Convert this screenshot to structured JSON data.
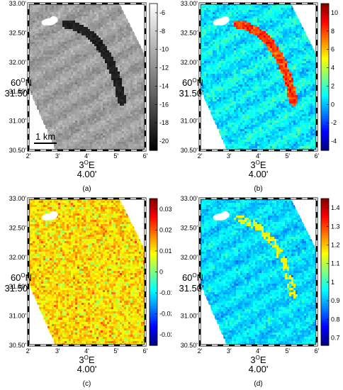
{
  "figure": {
    "coordinate_labels": {
      "lat_deg": "60",
      "lat_sup": "O",
      "lat_hemi": "N",
      "lat_min": "31.50'",
      "lon_deg": "3",
      "lon_sup": "O",
      "lon_hemi": "E",
      "lon_min": "4.00'"
    },
    "scale_bar_label": "1 km",
    "panels": [
      {
        "id": "a",
        "caption": "(a)",
        "yticks": [
          "33.00'",
          "32.50'",
          "32.00'",
          "31.50'",
          "31.00'",
          "30.50'"
        ],
        "xticks": [
          "2'",
          "3'",
          "4'",
          "5'",
          "6'"
        ],
        "colormap": "gray",
        "cb_ticks": [
          "-6",
          "-8",
          "-10",
          "-12",
          "-14",
          "-16",
          "-18",
          "-20"
        ],
        "cb_range": [
          -21,
          -5
        ],
        "has_scale_bar": true,
        "slick_value": -19
      },
      {
        "id": "b",
        "caption": "(b)",
        "yticks": [
          "33.00'",
          "32.50'",
          "32.00'",
          "",
          "31.00'",
          "30.50'"
        ],
        "xticks": [
          "2'",
          "3'",
          "4'",
          "5'",
          "6'"
        ],
        "colormap": "jet",
        "cb_ticks": [
          "10",
          "8",
          "6",
          "4",
          "2",
          "0",
          "-2",
          "-4"
        ],
        "cb_range": [
          -5,
          11
        ],
        "has_scale_bar": false,
        "slick_value": 8
      },
      {
        "id": "c",
        "caption": "(c)",
        "yticks": [
          "33.00'",
          "32.50'",
          "32.00'",
          "31.50'",
          "31.00'",
          "30.50'"
        ],
        "xticks": [
          "2'",
          "3'",
          "4'",
          "5'",
          "6'"
        ],
        "colormap": "jet",
        "cb_ticks": [
          "0.03",
          "0.02",
          "0.01",
          "0",
          "-0.01",
          "-0.02",
          "-0.03"
        ],
        "cb_range": [
          -0.035,
          0.035
        ],
        "has_scale_bar": false,
        "slick_value": null
      },
      {
        "id": "d",
        "caption": "(d)",
        "yticks": [
          "33.00'",
          "32.50'",
          "32.00'",
          "",
          "31.00'",
          "30.50'"
        ],
        "xticks": [
          "2'",
          "3'",
          "4'",
          "5'",
          "6'"
        ],
        "colormap": "jet",
        "cb_ticks": [
          "1.4",
          "1.3",
          "1.2",
          "1.1",
          "1",
          "0.9",
          "0.8",
          "0.7"
        ],
        "cb_range": [
          0.66,
          1.45
        ],
        "has_scale_bar": false,
        "slick_value": 1.15
      }
    ]
  },
  "chart_data": [
    {
      "type": "heatmap",
      "panel": "a",
      "title": "",
      "xlabel": "3°E 4.00'",
      "ylabel": "60°N 31.50'",
      "colorbar_ticks": [
        -6,
        -8,
        -10,
        -12,
        -14,
        -16,
        -18,
        -20
      ],
      "colorbar_range": [
        -21,
        -5
      ],
      "features": [
        "oil slick curving from 32.50' to 31.00'",
        "platform at 32.50'",
        "scale bar 1 km"
      ]
    },
    {
      "type": "heatmap",
      "panel": "b",
      "title": "",
      "xlabel": "3°E 4.00'",
      "ylabel": "60°N 31.50'",
      "colorbar_ticks": [
        10,
        8,
        6,
        4,
        2,
        0,
        -2,
        -4
      ],
      "colorbar_range": [
        -5,
        11
      ]
    },
    {
      "type": "heatmap",
      "panel": "c",
      "title": "",
      "xlabel": "3°E 4.00'",
      "ylabel": "60°N 31.50'",
      "colorbar_ticks": [
        0.03,
        0.02,
        0.01,
        0,
        -0.01,
        -0.02,
        -0.03
      ],
      "colorbar_range": [
        -0.035,
        0.035
      ]
    },
    {
      "type": "heatmap",
      "panel": "d",
      "title": "",
      "xlabel": "3°E 4.00'",
      "ylabel": "60°N 31.50'",
      "colorbar_ticks": [
        1.4,
        1.3,
        1.2,
        1.1,
        1,
        0.9,
        0.8,
        0.7
      ],
      "colorbar_range": [
        0.66,
        1.45
      ]
    }
  ]
}
